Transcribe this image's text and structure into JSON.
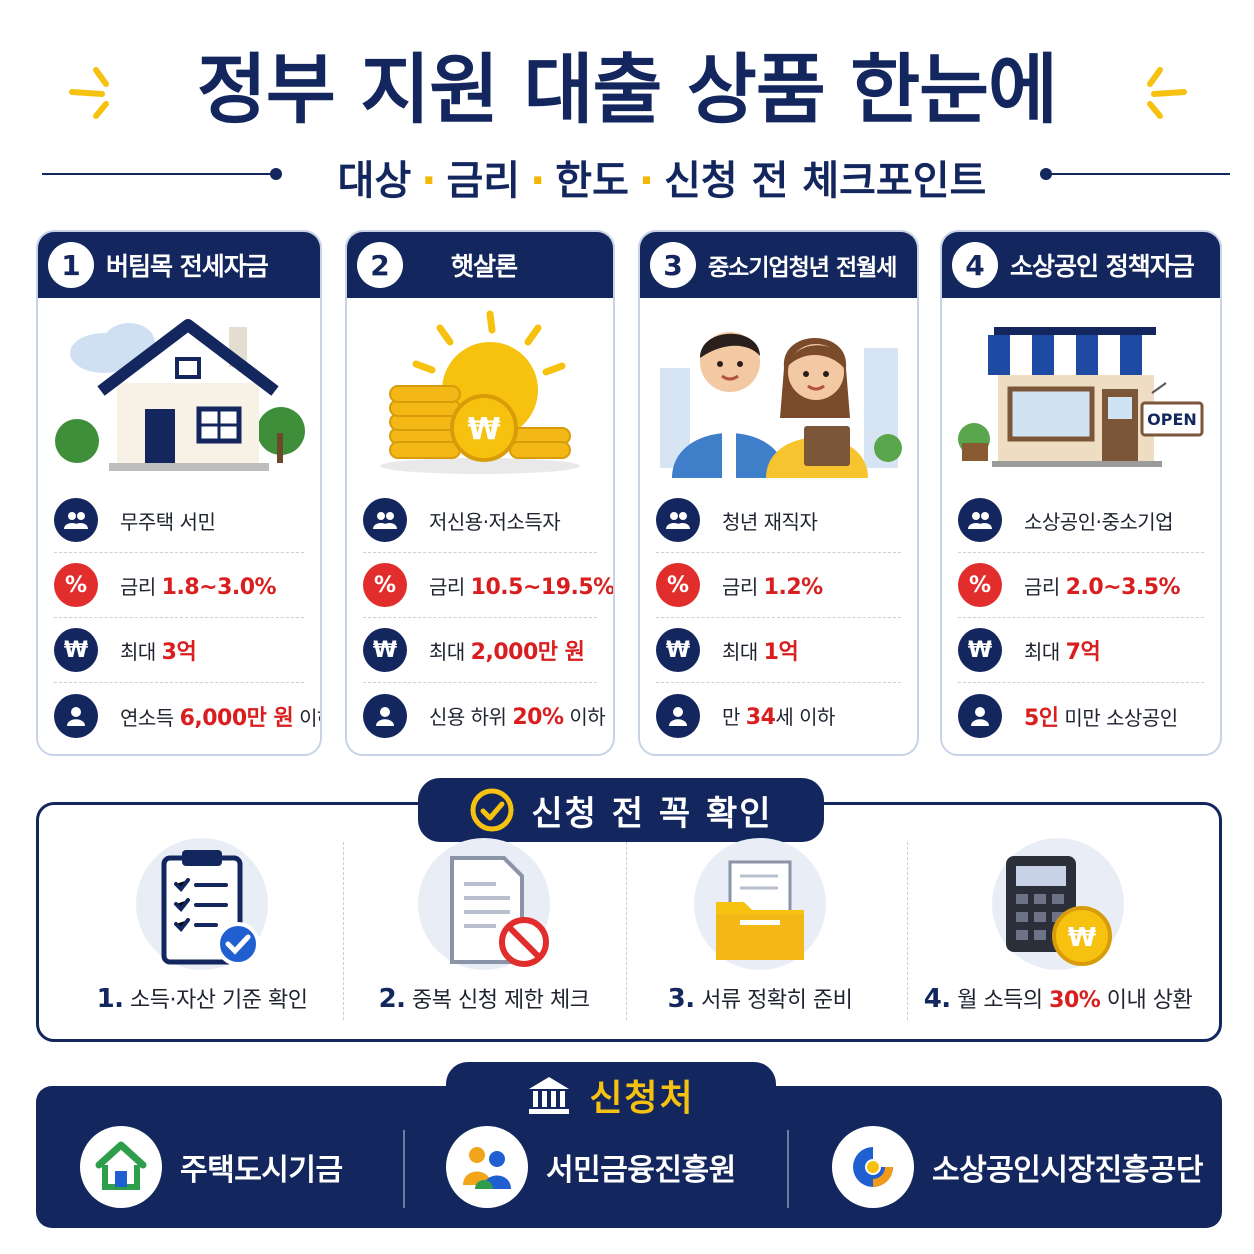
{
  "header": {
    "title": "정부 지원 대출 상품 한눈에",
    "subtitle_parts": [
      "대상",
      "금리",
      "한도",
      "신청 전 체크포인트"
    ],
    "separator": "·"
  },
  "products": [
    {
      "num": "1",
      "title": "버팀목 전세자금",
      "illustration": "house-icon",
      "rows": [
        {
          "icon": "users-icon",
          "pre": "무주택 서민",
          "hl": "",
          "post": ""
        },
        {
          "icon": "percent-icon",
          "pre": "금리 ",
          "hl": "1.8~3.0%",
          "post": ""
        },
        {
          "icon": "won-icon",
          "pre": "최대 ",
          "hl": "3억",
          "post": ""
        },
        {
          "icon": "person-icon",
          "pre": "연소득 ",
          "hl": "6,000만 원",
          "post": " 이하"
        }
      ]
    },
    {
      "num": "2",
      "title": "햇살론",
      "illustration": "coins-sun-icon",
      "rows": [
        {
          "icon": "users-icon",
          "pre": "저신용·저소득자",
          "hl": "",
          "post": ""
        },
        {
          "icon": "percent-icon",
          "pre": "금리 ",
          "hl": "10.5~19.5%",
          "post": ""
        },
        {
          "icon": "won-icon",
          "pre": "최대 ",
          "hl": "2,000만 원",
          "post": ""
        },
        {
          "icon": "person-icon",
          "pre": "신용 하위 ",
          "hl": "20%",
          "post": " 이하"
        }
      ]
    },
    {
      "num": "3",
      "title": "중소기업청년 전월세",
      "illustration": "young-couple-icon",
      "rows": [
        {
          "icon": "users-icon",
          "pre": "청년 재직자",
          "hl": "",
          "post": ""
        },
        {
          "icon": "percent-icon",
          "pre": "금리 ",
          "hl": "1.2%",
          "post": ""
        },
        {
          "icon": "won-icon",
          "pre": "최대 ",
          "hl": "1억",
          "post": ""
        },
        {
          "icon": "person-icon",
          "pre": "만 ",
          "hl": "34",
          "post": "세 이하"
        }
      ]
    },
    {
      "num": "4",
      "title": "소상공인 정책자금",
      "illustration": "store-icon",
      "store_sign": "OPEN",
      "rows": [
        {
          "icon": "users-icon",
          "pre": "소상공인·중소기업",
          "hl": "",
          "post": ""
        },
        {
          "icon": "percent-icon",
          "pre": "금리 ",
          "hl": "2.0~3.5%",
          "post": ""
        },
        {
          "icon": "won-icon",
          "pre": "최대 ",
          "hl": "7억",
          "post": ""
        },
        {
          "icon": "person-icon",
          "pre": "",
          "hl": "5인",
          "post": " 미만 소상공인"
        }
      ]
    }
  ],
  "row_glyphs": {
    "percent": "%",
    "won": "₩"
  },
  "checklist": {
    "title": "신청 전 꼭 확인",
    "items": [
      {
        "num": "1.",
        "pre": "소득·자산 기준 확인",
        "hl": "",
        "post": "",
        "icon": "clipboard-check-icon"
      },
      {
        "num": "2.",
        "pre": "중복 신청 제한 체크",
        "hl": "",
        "post": "",
        "icon": "document-prohibited-icon"
      },
      {
        "num": "3.",
        "pre": "서류 정확히 준비",
        "hl": "",
        "post": "",
        "icon": "folder-document-icon"
      },
      {
        "num": "4.",
        "pre": "월 소득의 ",
        "hl": "30%",
        "post": " 이내 상환",
        "icon": "calculator-coin-icon"
      }
    ]
  },
  "apply": {
    "title": "신청처",
    "agencies": [
      {
        "name": "주택도시기금",
        "icon": "house-logo-icon"
      },
      {
        "name": "서민금융진흥원",
        "icon": "people-logo-icon"
      },
      {
        "name": "소상공인시장진흥공단",
        "icon": "swirl-logo-icon"
      }
    ]
  },
  "colors": {
    "navy": "#13275e",
    "red": "#d81e1e",
    "yellow": "#f6c20f"
  }
}
